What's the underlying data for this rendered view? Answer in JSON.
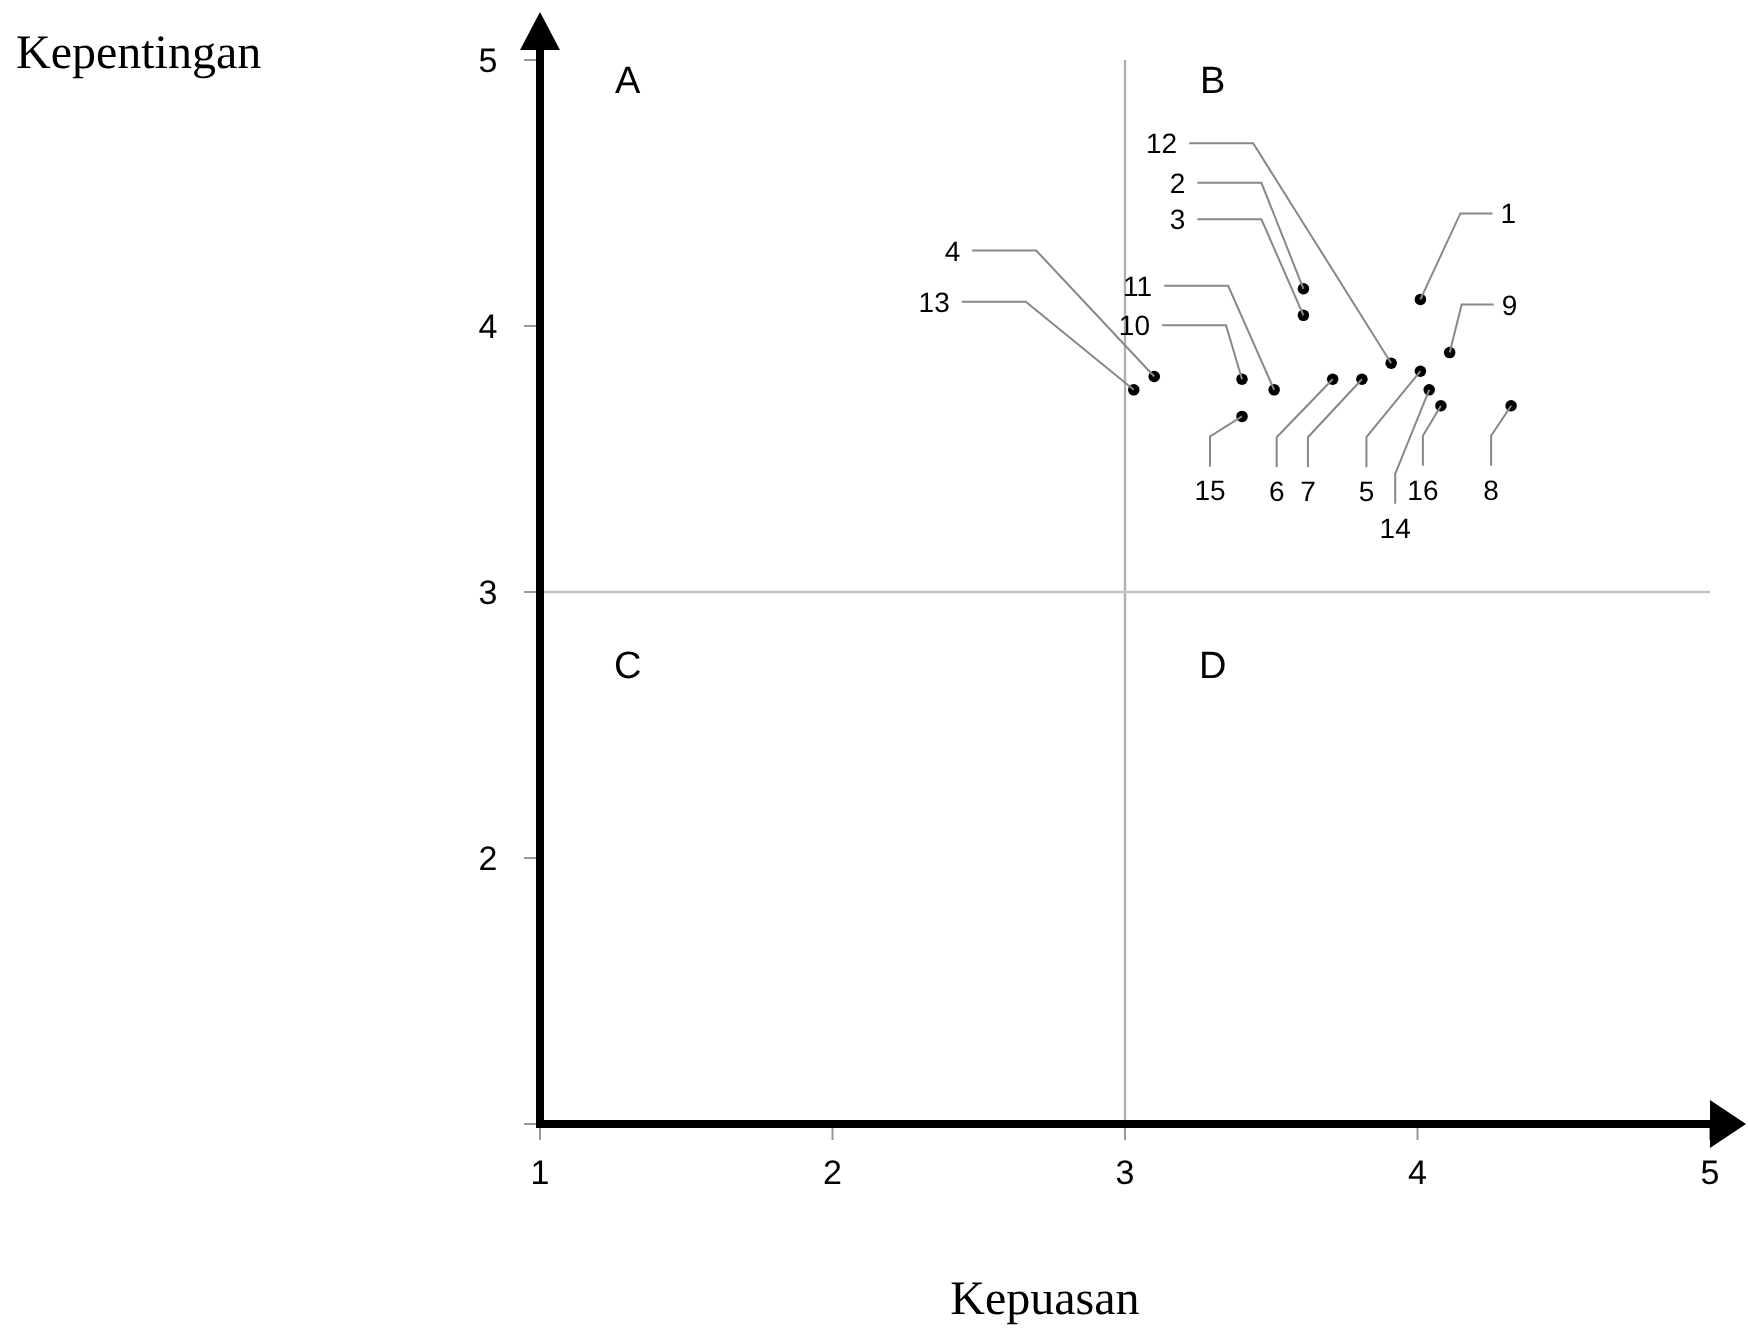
{
  "chart_data": {
    "type": "scatter",
    "xlabel": "Kepuasan",
    "ylabel": "Kepentingan",
    "xlim": [
      1,
      5
    ],
    "ylim": [
      1,
      5
    ],
    "xticks": [
      1,
      2,
      3,
      4,
      5
    ],
    "yticks": [
      {
        "value": 1,
        "label": null
      },
      2,
      3,
      4,
      5
    ],
    "grid": false,
    "marker": "circle",
    "series": [
      {
        "color": "#000000",
        "x": [
          4.01,
          3.61,
          3.61,
          3.1,
          4.01,
          3.71,
          3.81,
          4.32,
          4.11,
          3.4,
          3.51,
          3.91,
          3.03,
          4.04,
          3.4,
          4.08
        ],
        "values": [
          4.1,
          4.14,
          4.04,
          3.81,
          3.83,
          3.8,
          3.8,
          3.7,
          3.9,
          3.8,
          3.76,
          3.86,
          3.76,
          3.76,
          3.66,
          3.7
        ]
      }
    ],
    "ref_lines": [
      {
        "axis": "x",
        "value": 3,
        "color": "#b0b0b0"
      },
      {
        "axis": "y",
        "value": 3,
        "color": "#c4c4c4"
      }
    ],
    "annotations": [
      {
        "text": "1",
        "x": 4.01,
        "y": 4.1
      },
      {
        "text": "2",
        "x": 3.61,
        "y": 4.14
      },
      {
        "text": "3",
        "x": 3.61,
        "y": 4.04
      },
      {
        "text": "4",
        "x": 3.1,
        "y": 3.81
      },
      {
        "text": "5",
        "x": 4.01,
        "y": 3.83
      },
      {
        "text": "6",
        "x": 3.71,
        "y": 3.8
      },
      {
        "text": "7",
        "x": 3.81,
        "y": 3.8
      },
      {
        "text": "8",
        "x": 4.32,
        "y": 3.7
      },
      {
        "text": "9",
        "x": 4.11,
        "y": 3.9
      },
      {
        "text": "10",
        "x": 3.4,
        "y": 3.8
      },
      {
        "text": "11",
        "x": 3.51,
        "y": 3.76
      },
      {
        "text": "12",
        "x": 3.91,
        "y": 3.86
      },
      {
        "text": "13",
        "x": 3.03,
        "y": 3.76
      },
      {
        "text": "14",
        "x": 4.04,
        "y": 3.76
      },
      {
        "text": "15",
        "x": 3.4,
        "y": 3.66
      },
      {
        "text": "16",
        "x": 4.08,
        "y": 3.7
      },
      "A",
      "B",
      "C",
      "D"
    ]
  }
}
